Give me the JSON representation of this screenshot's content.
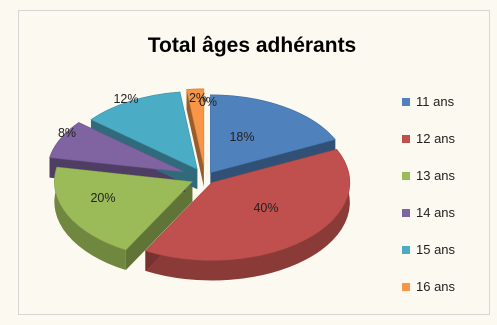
{
  "chart_data": {
    "type": "pie",
    "style": "3d-exploded",
    "title": "Total âges adhérants",
    "legend_position": "right",
    "categories": [
      "11 ans",
      "12 ans",
      "13 ans",
      "14 ans",
      "15 ans",
      "16 ans"
    ],
    "values": [
      18,
      40,
      20,
      8,
      12,
      2
    ],
    "labels": [
      "18%",
      "40%",
      "20%",
      "8%",
      "12%",
      "2%"
    ],
    "extra_label": "0%",
    "colors": [
      "#4f81bd",
      "#c0504d",
      "#9bbb59",
      "#8064a2",
      "#4bacc6",
      "#f79646"
    ]
  }
}
